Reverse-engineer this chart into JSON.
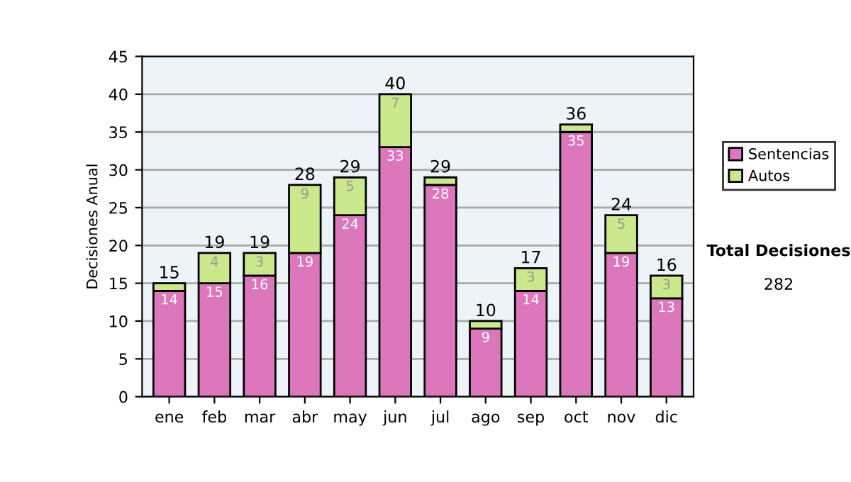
{
  "chart_data": {
    "type": "bar",
    "stacked": true,
    "ylabel": "Decisiones Anual",
    "categories": [
      "ene",
      "feb",
      "mar",
      "abr",
      "may",
      "jun",
      "jul",
      "ago",
      "sep",
      "oct",
      "nov",
      "dic"
    ],
    "series": [
      {
        "name": "Sentencias",
        "color": "#dd77bb",
        "values": [
          14,
          15,
          16,
          19,
          24,
          33,
          28,
          9,
          14,
          35,
          19,
          13
        ],
        "value_labels": [
          "14",
          "15",
          "16",
          "19",
          "24",
          "33",
          "28",
          "9",
          "14",
          "35",
          "19",
          "13"
        ]
      },
      {
        "name": "Autos",
        "color": "#cce88c",
        "values": [
          1,
          4,
          3,
          9,
          5,
          7,
          1,
          1,
          3,
          1,
          5,
          3
        ],
        "value_labels": [
          null,
          "4",
          "3",
          "9",
          "5",
          "7",
          null,
          null,
          "3",
          null,
          "5",
          "3"
        ]
      }
    ],
    "totals": [
      "15",
      "19",
      "19",
      "28",
      "29",
      "40",
      "29",
      "10",
      "17",
      "36",
      "24",
      "16"
    ],
    "ylim": [
      0,
      45
    ],
    "yticks": [
      0,
      5,
      10,
      15,
      20,
      25,
      30,
      35,
      40,
      45
    ],
    "grid": "y",
    "legend": "right",
    "annotations": [
      "Total Decisiones",
      "282"
    ]
  }
}
